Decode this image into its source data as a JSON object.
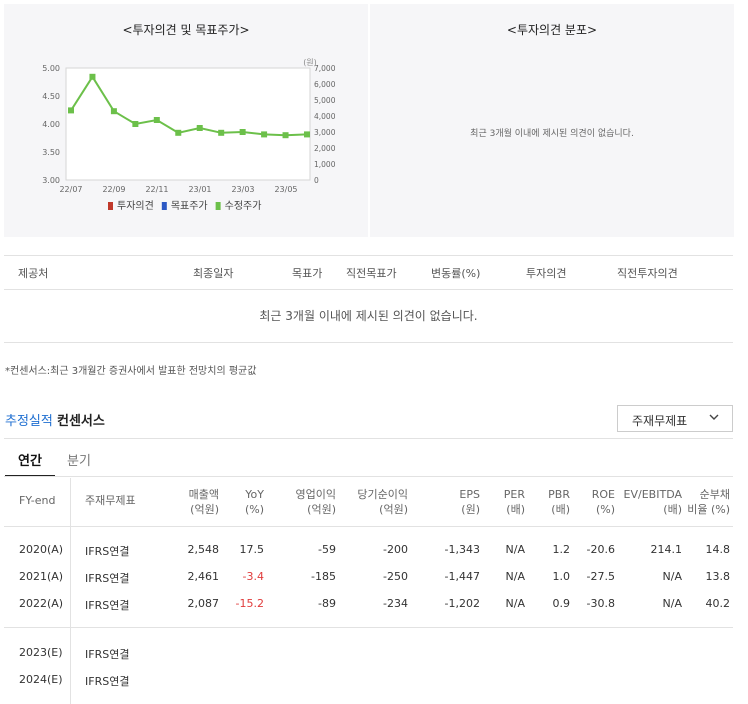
{
  "opinion_panel": {
    "title": "<투자의견 및 목표주가>",
    "legend": [
      {
        "label": "투자의견",
        "color": "#c0392b"
      },
      {
        "label": "목표주가",
        "color": "#2b58c4"
      },
      {
        "label": "수정주가",
        "color": "#6cc04a"
      }
    ]
  },
  "distribution_panel": {
    "title": "<투자의견 분포>",
    "empty_message": "최근 3개월 이내에 제시된 의견이 없습니다."
  },
  "chart_data": {
    "type": "line",
    "y_left_unit": "",
    "y_right_unit": "(원)",
    "y_left_ticks": [
      "5.00",
      "4.50",
      "4.00",
      "3.50",
      "3.00"
    ],
    "y_right_ticks": [
      "7,000",
      "6,000",
      "5,000",
      "4,000",
      "3,000",
      "2,000",
      "1,000",
      "0"
    ],
    "x_ticks": [
      "22/07",
      "22/09",
      "22/11",
      "23/01",
      "23/03",
      "23/05"
    ],
    "ylim_left": [
      3.0,
      5.0
    ],
    "ylim_right": [
      0,
      7000
    ],
    "series": [
      {
        "name": "수정주가",
        "color": "#6cc04a",
        "values": [
          4350,
          6450,
          4300,
          3500,
          3750,
          2950,
          3250,
          2950,
          3000,
          2850,
          2800,
          2850
        ]
      }
    ]
  },
  "opinion_table": {
    "headers": [
      "제공처",
      "최종일자",
      "목표가",
      "직전목표가",
      "변동률(%)",
      "투자의견",
      "직전투자의견"
    ],
    "empty_message": "최근 3개월 이내에 제시된 의견이 없습니다."
  },
  "footnote": "*컨센서스:최근 3개월간 증권사에서 발표한 전망치의 평균값",
  "consensus": {
    "title_blue": "추정실적",
    "title_dark": "컨센서스",
    "select_value": "주재무제표",
    "tabs": [
      "연간",
      "분기"
    ],
    "columns": [
      {
        "l1": "FY-end",
        "l2": ""
      },
      {
        "l1": "주재무제표",
        "l2": ""
      },
      {
        "l1": "매출액",
        "l2": "(억원)"
      },
      {
        "l1": "YoY",
        "l2": "(%)"
      },
      {
        "l1": "영업이익",
        "l2": "(억원)"
      },
      {
        "l1": "당기순이익",
        "l2": "(억원)"
      },
      {
        "l1": "EPS",
        "l2": "(원)"
      },
      {
        "l1": "PER",
        "l2": "(배)"
      },
      {
        "l1": "PBR",
        "l2": "(배)"
      },
      {
        "l1": "ROE",
        "l2": "(%)"
      },
      {
        "l1": "EV/EBITDA",
        "l2": "(배)"
      },
      {
        "l1": "순부채",
        "l2": "비율 (%)"
      }
    ],
    "rows": [
      {
        "fy": "2020(A)",
        "std": "IFRS연결",
        "sales": "2,548",
        "yoy": "17.5",
        "op": "-59",
        "net": "-200",
        "eps": "-1,343",
        "per": "N/A",
        "pbr": "1.2",
        "roe": "-20.6",
        "ev": "214.1",
        "debt": "14.8"
      },
      {
        "fy": "2021(A)",
        "std": "IFRS연결",
        "sales": "2,461",
        "yoy": "-3.4",
        "op": "-185",
        "net": "-250",
        "eps": "-1,447",
        "per": "N/A",
        "pbr": "1.0",
        "roe": "-27.5",
        "ev": "N/A",
        "debt": "13.8"
      },
      {
        "fy": "2022(A)",
        "std": "IFRS연결",
        "sales": "2,087",
        "yoy": "-15.2",
        "op": "-89",
        "net": "-234",
        "eps": "-1,202",
        "per": "N/A",
        "pbr": "0.9",
        "roe": "-30.8",
        "ev": "N/A",
        "debt": "40.2"
      },
      {
        "fy": "2023(E)",
        "std": "IFRS연결",
        "sales": "",
        "yoy": "",
        "op": "",
        "net": "",
        "eps": "",
        "per": "",
        "pbr": "",
        "roe": "",
        "ev": "",
        "debt": ""
      },
      {
        "fy": "2024(E)",
        "std": "IFRS연결",
        "sales": "",
        "yoy": "",
        "op": "",
        "net": "",
        "eps": "",
        "per": "",
        "pbr": "",
        "roe": "",
        "ev": "",
        "debt": ""
      }
    ]
  }
}
